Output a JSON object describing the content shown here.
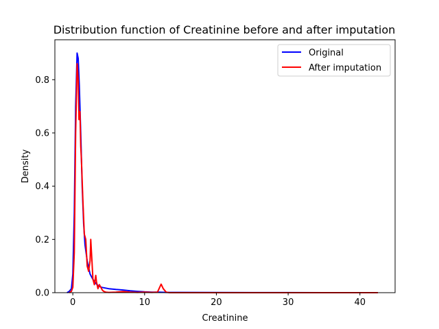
{
  "chart_data": {
    "type": "line",
    "title": "Distribution function of Creatinine before and after imputation",
    "xlabel": "Creatinine",
    "ylabel": "Density",
    "xlim": [
      -2.5,
      44.9
    ],
    "ylim": [
      0,
      0.95
    ],
    "xticks": [
      0,
      10,
      20,
      30,
      40
    ],
    "yticks": [
      0.0,
      0.2,
      0.4,
      0.6,
      0.8
    ],
    "xtick_labels": [
      "0",
      "10",
      "20",
      "30",
      "40"
    ],
    "ytick_labels": [
      "0.0",
      "0.2",
      "0.4",
      "0.6",
      "0.8"
    ],
    "grid": false,
    "legend_position": "top-right",
    "series": [
      {
        "name": "Original",
        "color": "#0000ff",
        "x": [
          -0.8,
          -0.5,
          -0.2,
          0.0,
          0.2,
          0.4,
          0.6,
          0.75,
          0.9,
          1.1,
          1.3,
          1.5,
          1.7,
          2.0,
          2.4,
          2.8,
          3.2,
          3.6,
          4.0,
          5.0,
          6.0,
          7.0,
          8.0,
          9.0,
          10.0,
          11.0,
          12.0,
          13.0,
          15.0,
          20.0,
          25.0,
          30.0,
          35.0,
          40.0,
          42.5
        ],
        "y": [
          0.0,
          0.005,
          0.015,
          0.07,
          0.3,
          0.7,
          0.9,
          0.88,
          0.78,
          0.6,
          0.4,
          0.26,
          0.18,
          0.12,
          0.07,
          0.05,
          0.035,
          0.025,
          0.02,
          0.015,
          0.012,
          0.01,
          0.007,
          0.005,
          0.003,
          0.002,
          0.002,
          0.001,
          0.001,
          0.0005,
          0.0003,
          0.0002,
          0.0001,
          0.0001,
          0.0
        ]
      },
      {
        "name": "After imputation",
        "color": "#ff0000",
        "x": [
          -0.5,
          -0.2,
          0.0,
          0.2,
          0.4,
          0.6,
          0.75,
          0.85,
          1.0,
          1.1,
          1.2,
          1.4,
          1.6,
          1.8,
          2.0,
          2.2,
          2.4,
          2.5,
          2.6,
          2.8,
          3.0,
          3.2,
          3.3,
          3.5,
          3.7,
          3.9,
          4.1,
          4.3,
          4.6,
          5.0,
          6.0,
          7.0,
          8.0,
          9.0,
          10.0,
          11.0,
          11.8,
          12.1,
          12.3,
          12.6,
          13.0,
          13.5,
          15.0,
          20.0,
          30.0,
          40.0,
          42.5
        ],
        "y": [
          0.0,
          0.005,
          0.02,
          0.15,
          0.6,
          0.86,
          0.8,
          0.65,
          0.68,
          0.55,
          0.5,
          0.35,
          0.22,
          0.2,
          0.1,
          0.08,
          0.12,
          0.2,
          0.15,
          0.05,
          0.03,
          0.065,
          0.04,
          0.015,
          0.03,
          0.02,
          0.01,
          0.005,
          0.002,
          0.001,
          0.002,
          0.004,
          0.002,
          0.001,
          0.002,
          0.001,
          0.002,
          0.02,
          0.032,
          0.015,
          0.002,
          0.0,
          0.0,
          0.0,
          0.0,
          0.0,
          0.0
        ]
      }
    ]
  }
}
